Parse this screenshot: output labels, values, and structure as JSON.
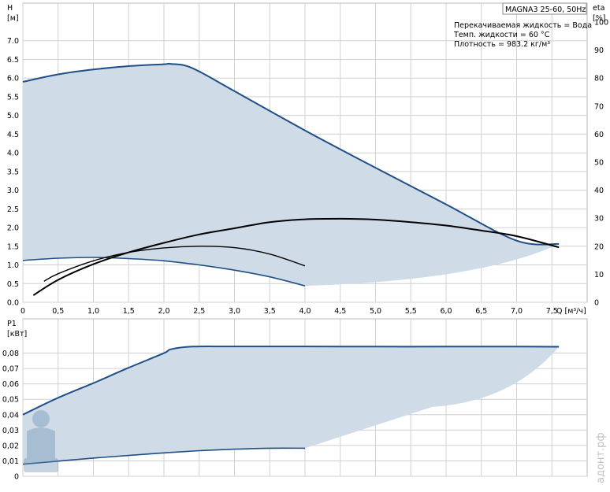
{
  "header": {
    "model": "MAGNA3 25-60, 50Hz",
    "lines": [
      "Перекачиваемая жидкость = Вода",
      "Темп. жидкости = 60 °C",
      "Плотность = 983.2 кг/м³"
    ]
  },
  "watermark": "адонт.рф",
  "colors": {
    "fill": "#cfdbe7",
    "curve_blue": "#1f4f86",
    "curve_black": "#000000",
    "grid": "#d0d0d0"
  },
  "chart_data": [
    {
      "type": "area",
      "ylabel_line1": "H",
      "ylabel_line2": "[м]",
      "y2label_line1": "eta",
      "y2label_line2": "[%]",
      "xlabel": "Q [м³/ч]",
      "xlim": [
        0,
        8
      ],
      "ylim": [
        0,
        7.5
      ],
      "y2lim": [
        0,
        100
      ],
      "x_ticks": [
        "0",
        "0,5",
        "1,0",
        "1,5",
        "2,0",
        "2,5",
        "3,0",
        "3,5",
        "4,0",
        "4,5",
        "5,0",
        "5,5",
        "6,0",
        "6,5",
        "7,0",
        "7,5"
      ],
      "y_ticks": [
        "0.0",
        "0.5",
        "1.0",
        "1.5",
        "2.0",
        "2.5",
        "3.0",
        "3.5",
        "4.0",
        "4.5",
        "5.0",
        "5.5",
        "6.0",
        "6.5",
        "7.0"
      ],
      "y2_ticks": [
        "0",
        "10",
        "20",
        "30",
        "40",
        "50",
        "60",
        "70",
        "80",
        "90",
        "100"
      ],
      "grid": true,
      "series": [
        {
          "role": "max-curve",
          "x": [
            0,
            0.5,
            1.0,
            1.5,
            2.0,
            2.1,
            2.4,
            3.0,
            4.0,
            5.0,
            6.0,
            7.0,
            7.6
          ],
          "y": [
            5.9,
            6.1,
            6.23,
            6.32,
            6.37,
            6.38,
            6.27,
            5.65,
            4.6,
            3.6,
            2.62,
            1.65,
            1.56
          ]
        },
        {
          "role": "min-curve",
          "x": [
            0,
            0.5,
            1.0,
            1.5,
            2.0,
            2.5,
            3.0,
            3.5,
            4.0
          ],
          "y": [
            1.12,
            1.18,
            1.2,
            1.17,
            1.11,
            1.0,
            0.86,
            0.68,
            0.44
          ]
        },
        {
          "role": "eta-curve",
          "axis": "y2",
          "x": [
            0.15,
            0.5,
            1.0,
            1.5,
            2.0,
            2.5,
            3.0,
            3.5,
            4.0,
            4.5,
            5.0,
            5.5,
            6.0,
            6.5,
            7.0,
            7.6
          ],
          "y": [
            2.5,
            8,
            13.6,
            17.8,
            21.2,
            24.2,
            26.4,
            28.6,
            29.6,
            29.8,
            29.5,
            28.6,
            27.4,
            25.6,
            23.6,
            19.6
          ]
        },
        {
          "role": "eta-curve-min",
          "axis": "y2",
          "x": [
            0.3,
            0.5,
            1.0,
            1.5,
            2.0,
            2.5,
            3.0,
            3.5,
            4.0
          ],
          "y": [
            7.5,
            10.2,
            14.8,
            17.8,
            19.4,
            20.0,
            19.5,
            17.2,
            13.0
          ]
        }
      ]
    },
    {
      "type": "area",
      "ylabel_line1": "P1",
      "ylabel_line2": "[кВт]",
      "xlim": [
        0,
        8
      ],
      "ylim": [
        0,
        0.09
      ],
      "y_ticks": [
        "0",
        "0,01",
        "0,02",
        "0,03",
        "0,04",
        "0,05",
        "0,06",
        "0,07",
        "0,08"
      ],
      "grid": true,
      "series": [
        {
          "role": "max-power",
          "x": [
            0,
            0.5,
            1.0,
            1.5,
            2.0,
            2.1,
            2.4,
            3.0,
            4.0,
            5.0,
            6.0,
            7.0,
            7.6
          ],
          "y": [
            0.04,
            0.051,
            0.0605,
            0.0705,
            0.08,
            0.0825,
            0.0842,
            0.0843,
            0.0843,
            0.0842,
            0.0842,
            0.0842,
            0.0841
          ]
        },
        {
          "role": "min-power",
          "x": [
            0,
            0.5,
            1.0,
            1.5,
            2.0,
            2.5,
            3.0,
            3.5,
            4.0
          ],
          "y": [
            0.0078,
            0.0098,
            0.0118,
            0.0135,
            0.0152,
            0.0166,
            0.0176,
            0.0182,
            0.0182
          ]
        }
      ]
    }
  ]
}
